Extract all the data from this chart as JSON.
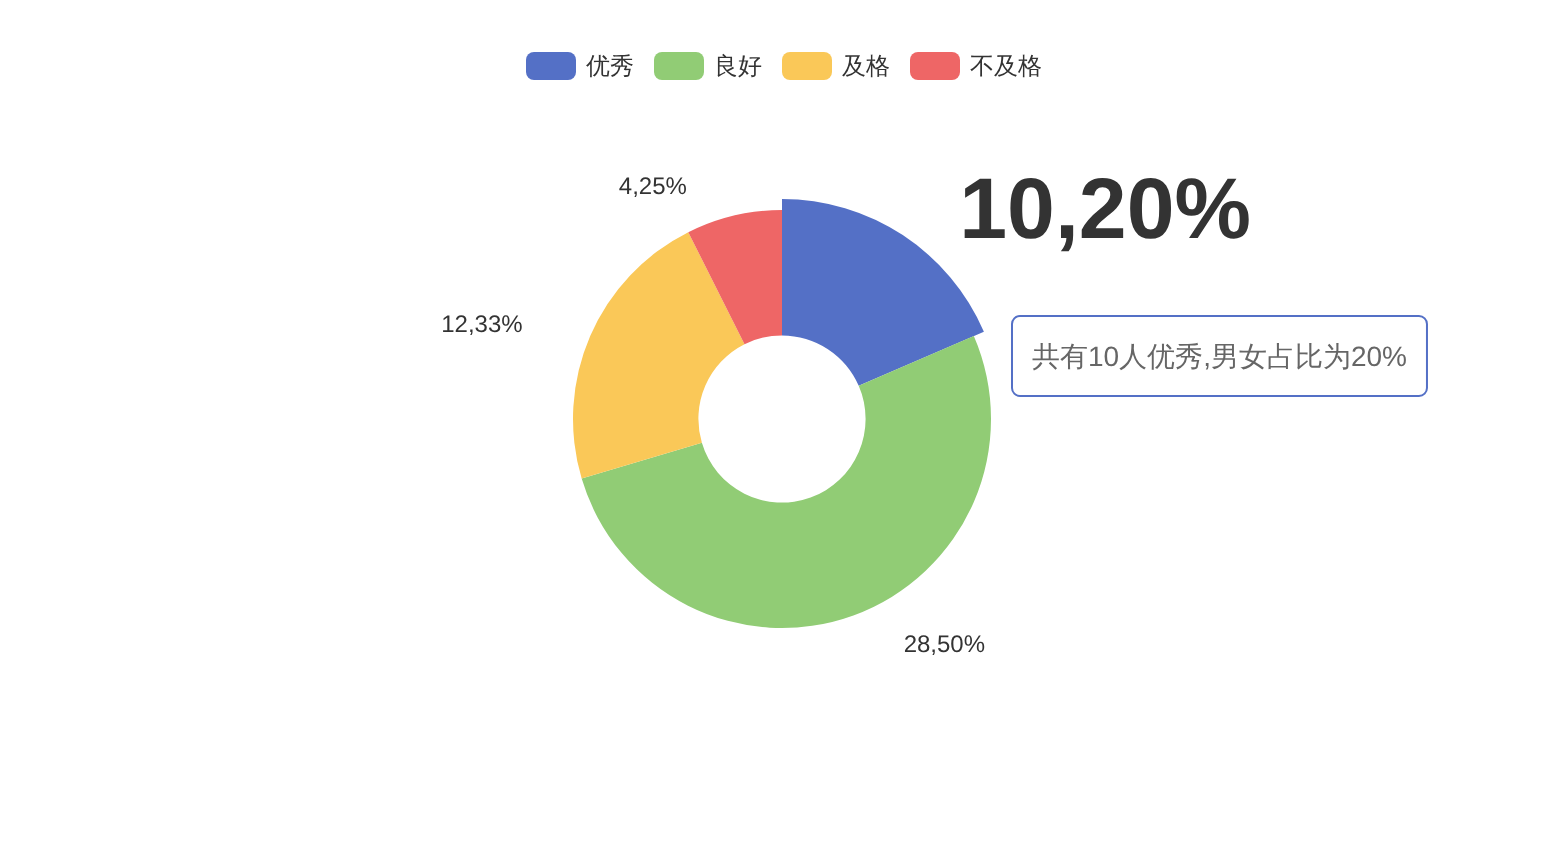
{
  "chart_data": {
    "type": "donut",
    "categories": [
      "优秀",
      "良好",
      "及格",
      "不及格"
    ],
    "values": [
      18.5,
      51.9,
      22.2,
      7.4
    ],
    "colors": [
      "#5470c6",
      "#91cc75",
      "#fac858",
      "#ee6666"
    ],
    "legend": "top",
    "annotations": [
      {
        "text": "10,20%",
        "x": "优秀"
      },
      {
        "text": "28,50%",
        "x": "良好"
      },
      {
        "text": "12,33%",
        "x": "及格"
      },
      {
        "text": "4,25%",
        "x": "不及格"
      },
      "共有10人优秀,男女占比为20%"
    ]
  }
}
